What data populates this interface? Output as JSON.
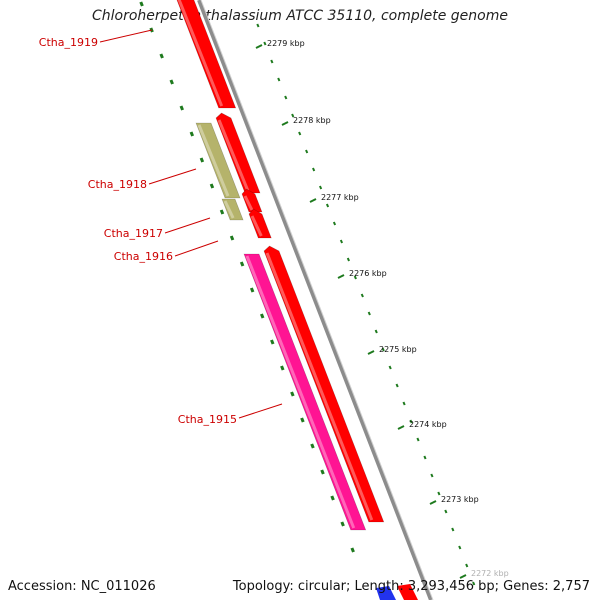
{
  "title": "Chloroherpeton thalassium ATCC 35110, complete genome",
  "footer": {
    "accession": "Accession: NC_011026",
    "topology": "Topology: circular; Length: 3,293,456 bp; Genes: 2,757"
  },
  "colors": {
    "gene_forward": "#ff0000",
    "gene_reverse_pink": "#ff1493",
    "gene_reverse_khaki": "#b5b36b",
    "gene_blue": "#2233ee",
    "backbone": "#8c8c8c",
    "tick": "#1e7a1e",
    "label": "#cc0000"
  },
  "scale_ticks": [
    "2279 kbp",
    "2278 kbp",
    "2277 kbp",
    "2276 kbp",
    "2275 kbp",
    "2274 kbp",
    "2273 kbp",
    "2272 kbp"
  ],
  "genes": [
    {
      "name": "Ctha_1919",
      "strand": "forward"
    },
    {
      "name": "",
      "strand": "forward"
    },
    {
      "name": "Ctha_1918",
      "strand": "reverse"
    },
    {
      "name": "",
      "strand": "forward"
    },
    {
      "name": "Ctha_1917",
      "strand": "reverse"
    },
    {
      "name": "Ctha_1916",
      "strand": "forward"
    },
    {
      "name": "Ctha_1915",
      "strand": "reverse"
    },
    {
      "name": "",
      "strand": "forward"
    }
  ]
}
